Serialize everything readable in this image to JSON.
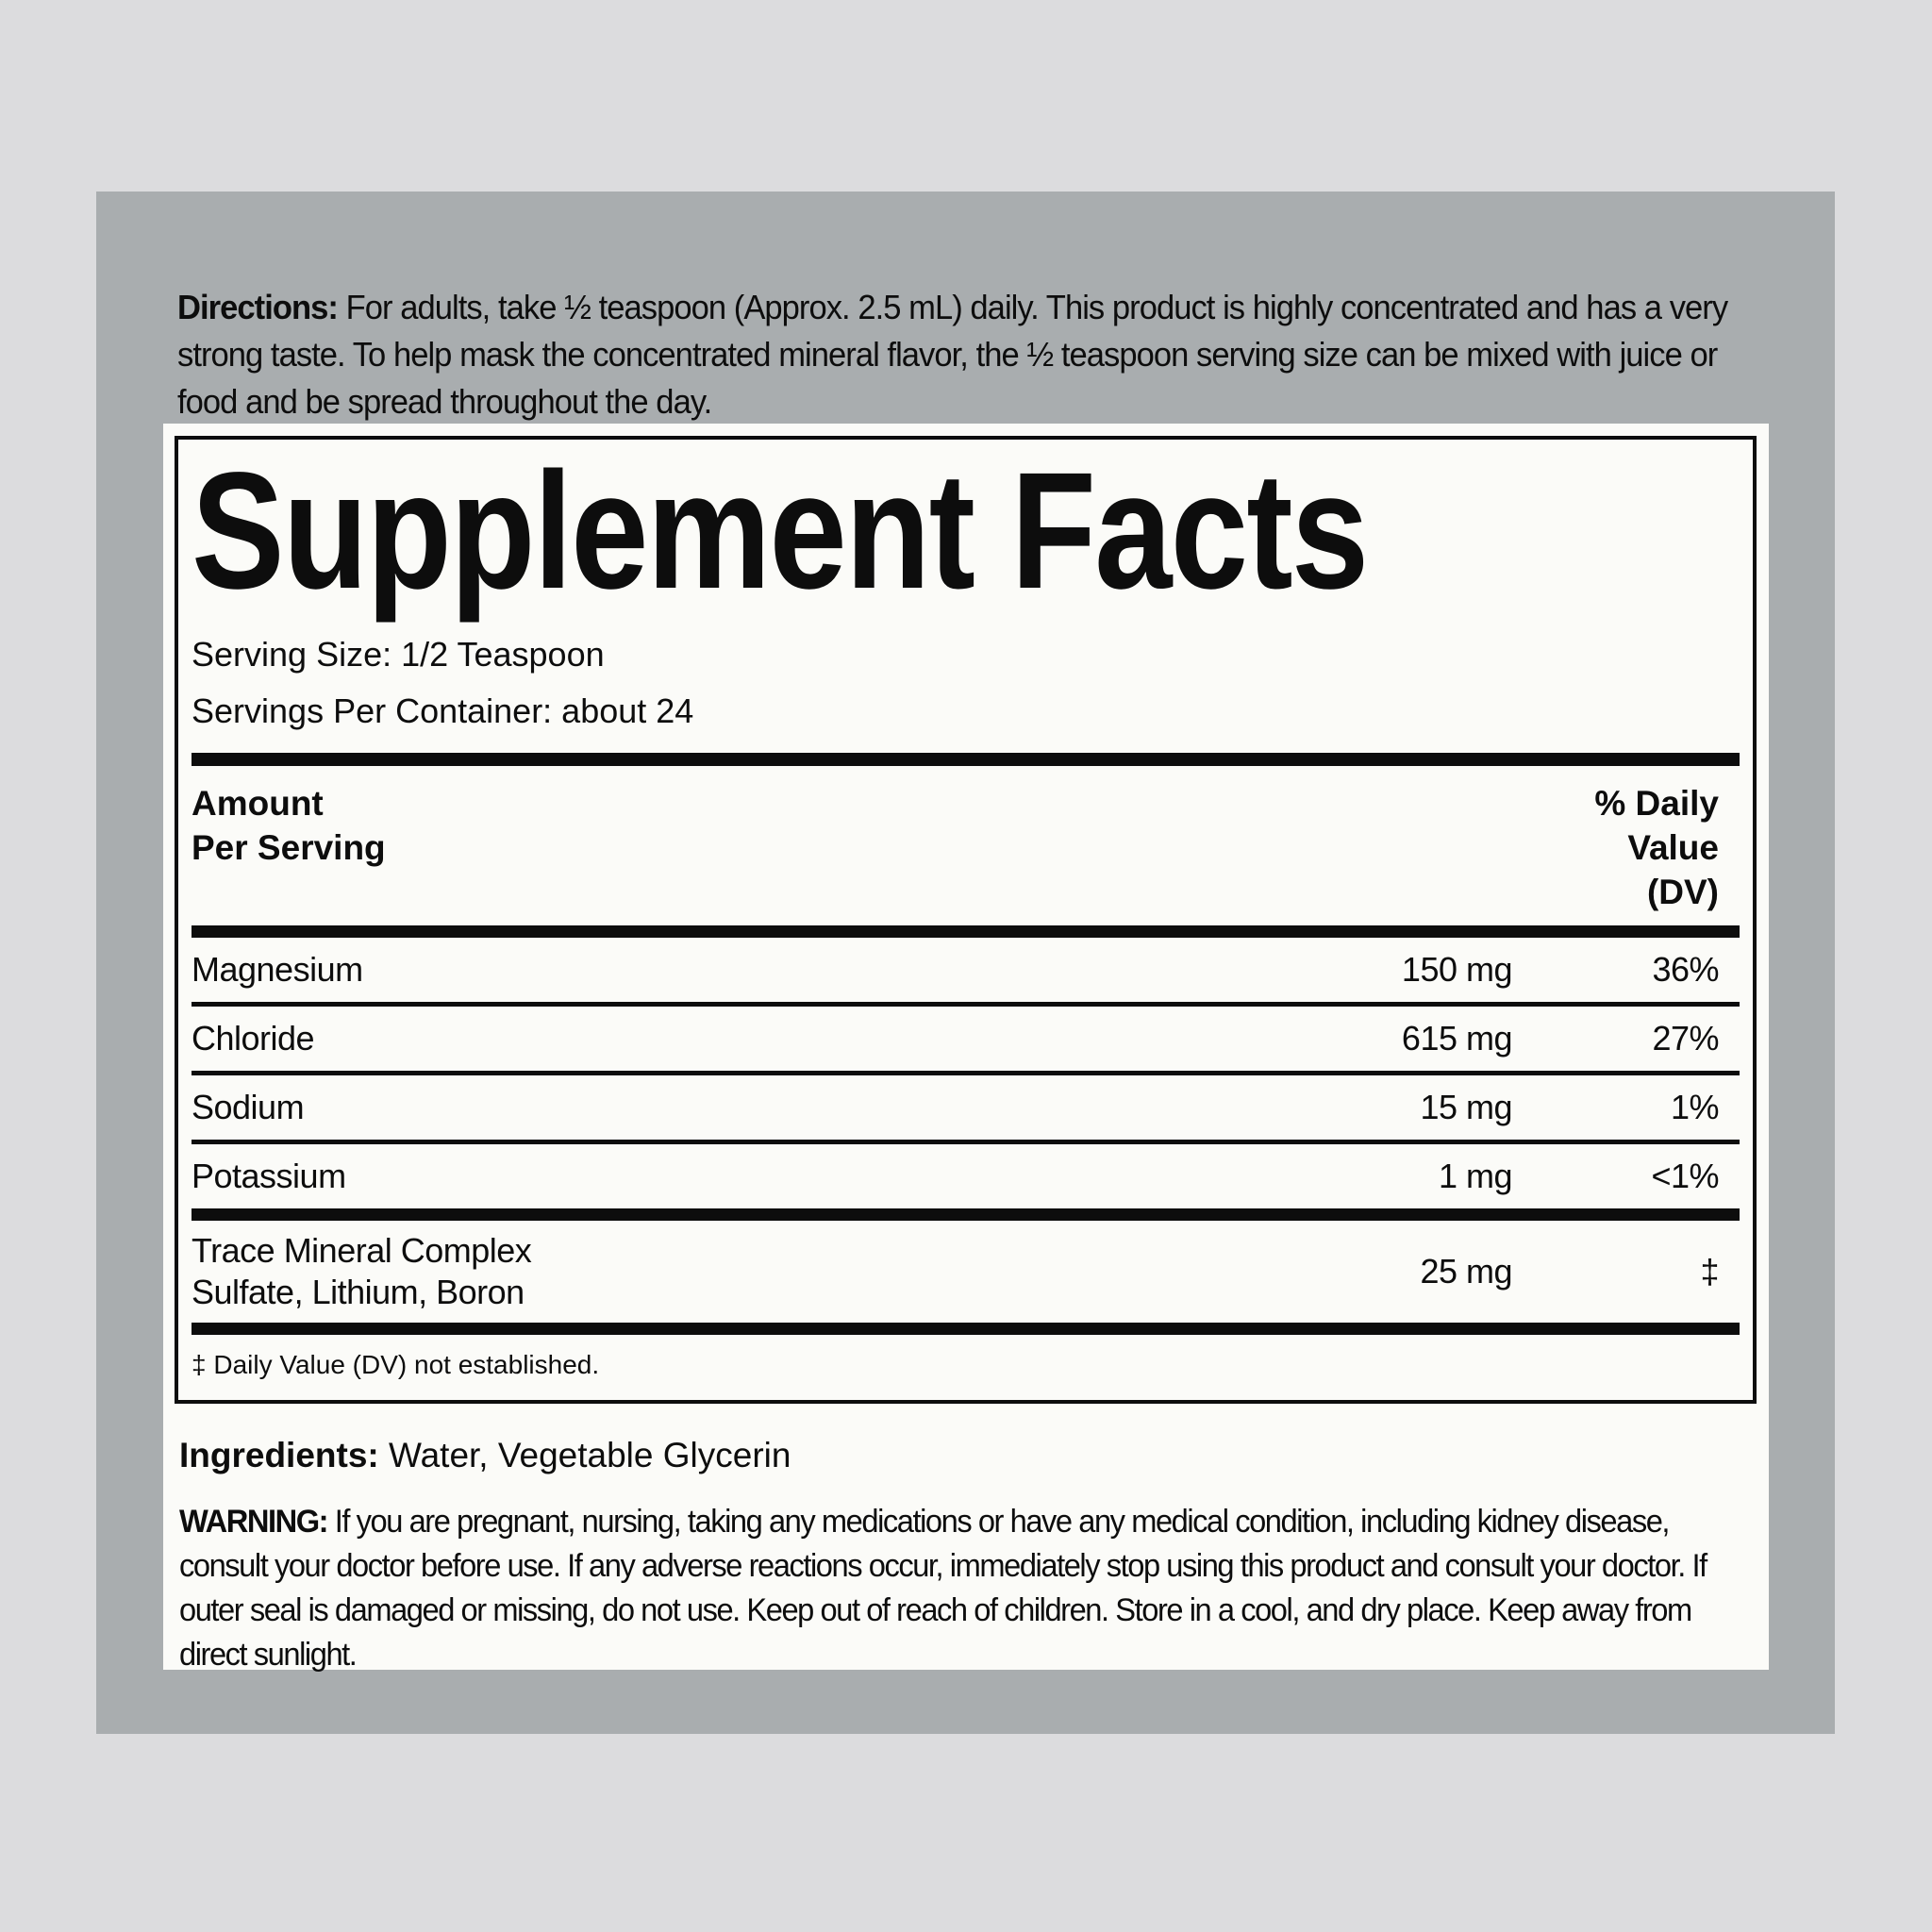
{
  "directions": {
    "label": "Directions:",
    "text": "For adults, take ½ teaspoon (Approx. 2.5 mL) daily. This product is highly concentrated and has a very strong taste. To help mask the concentrated mineral flavor, the ½ teaspoon serving size can be mixed with juice or food and be spread throughout the day."
  },
  "facts": {
    "title": "Supplement Facts",
    "serving_size": "Serving Size: 1/2 Teaspoon",
    "servings_per_container": "Servings Per Container: about 24",
    "header": {
      "amount_line1": "Amount",
      "amount_line2": "Per Serving",
      "dv_line1": "% Daily",
      "dv_line2": "Value",
      "dv_line3": "(DV)"
    },
    "rows": [
      {
        "name": "Magnesium",
        "amount": "150 mg",
        "dv": "36%"
      },
      {
        "name": "Chloride",
        "amount": "615 mg",
        "dv": "27%"
      },
      {
        "name": "Sodium",
        "amount": "15 mg",
        "dv": "1%"
      },
      {
        "name": "Potassium",
        "amount": "1 mg",
        "dv": "<1%"
      },
      {
        "name": "Trace Mineral Complex",
        "name2": "Sulfate, Lithium, Boron",
        "amount": "25 mg",
        "dv": "‡"
      }
    ],
    "footnote": "‡ Daily Value (DV) not established."
  },
  "ingredients": {
    "label": "Ingredients:",
    "text": "Water, Vegetable Glycerin"
  },
  "warning": {
    "label": "WARNING:",
    "text": "If you are pregnant, nursing, taking any medications or have any medical condition, including kidney disease, consult your doctor before use. If any adverse reactions occur, immediately stop using this product and consult your doctor. If outer seal is damaged or missing, do not use. Keep out of reach of children. Store in a cool, and dry place. Keep away from direct sunlight."
  },
  "colors": {
    "outer_background": "#dcdcde",
    "panel_background": "#a9adaf",
    "card_background": "#fbfbf8",
    "text": "#0d0d0d"
  }
}
